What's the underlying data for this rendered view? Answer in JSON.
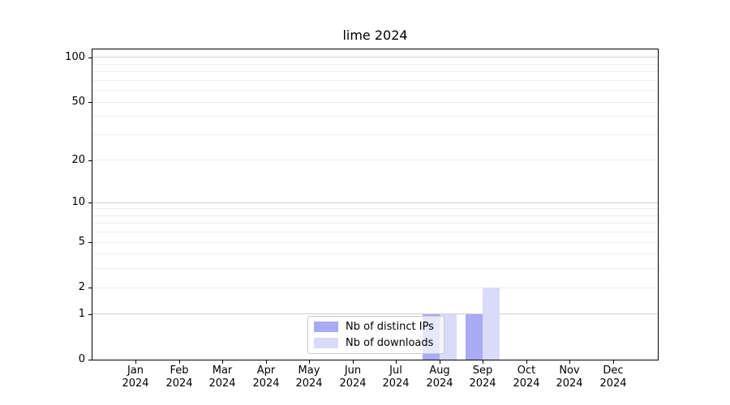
{
  "figure": {
    "title": "lime 2024"
  },
  "legend": {
    "items": [
      {
        "label": "Nb of distinct IPs",
        "color": "#a9abf3"
      },
      {
        "label": "Nb of downloads",
        "color": "#d9dbf8"
      }
    ]
  },
  "chart_data": {
    "type": "bar",
    "title": "lime 2024",
    "categories": [
      "Jan",
      "Feb",
      "Mar",
      "Apr",
      "May",
      "Jun",
      "Jul",
      "Aug",
      "Sep",
      "Oct",
      "Nov",
      "Dec"
    ],
    "category_year": "2024",
    "series": [
      {
        "name": "Nb of distinct IPs",
        "color": "#a9abf3",
        "values": [
          0,
          0,
          0,
          0,
          0,
          0,
          0,
          1,
          1,
          0,
          0,
          0
        ]
      },
      {
        "name": "Nb of downloads",
        "color": "#d9dbf8",
        "values": [
          0,
          0,
          0,
          0,
          0,
          0,
          0,
          1,
          2,
          0,
          0,
          0
        ]
      }
    ],
    "yscale": "log1p",
    "ylim": [
      0,
      113
    ],
    "ytick_values": [
      100,
      50,
      20,
      10,
      5,
      2,
      1,
      0
    ],
    "ytick_labels": [
      "100",
      "50",
      "20",
      "10",
      "5",
      "2",
      "1",
      "0"
    ],
    "grid_major_values": [
      1,
      10,
      100
    ],
    "grid_minor_values": [
      2,
      3,
      4,
      5,
      6,
      7,
      8,
      9,
      20,
      30,
      40,
      50,
      60,
      70,
      80,
      90
    ],
    "grid": "horizontal",
    "legend_position": "lower center",
    "xlabel": "",
    "ylabel": ""
  }
}
